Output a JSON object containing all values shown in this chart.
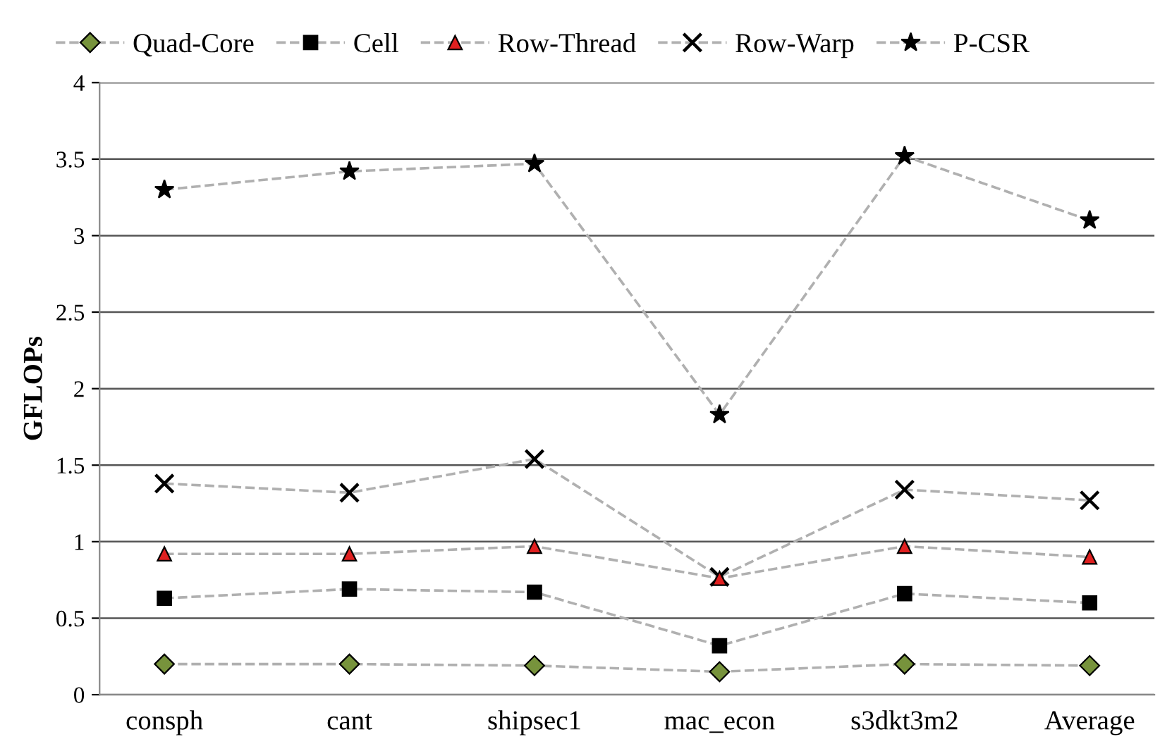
{
  "chart_data": {
    "type": "line",
    "ylabel": "GFLOPs",
    "categories": [
      "consph",
      "cant",
      "shipsec1",
      "mac_econ",
      "s3dkt3m2",
      "Average"
    ],
    "ylim": [
      0,
      4
    ],
    "yticks": [
      0,
      0.5,
      1,
      1.5,
      2,
      2.5,
      3,
      3.5,
      4
    ],
    "grid": "y",
    "legend": "top",
    "line_style": "dashed",
    "series": [
      {
        "name": "Quad-Core",
        "color": "#77933c",
        "marker": "diamond",
        "values": [
          0.2,
          0.2,
          0.19,
          0.15,
          0.2,
          0.19
        ]
      },
      {
        "name": "Cell",
        "color": "#000000",
        "marker": "square",
        "values": [
          0.63,
          0.69,
          0.67,
          0.32,
          0.66,
          0.6
        ]
      },
      {
        "name": "Row-Thread",
        "color": "#e02020",
        "marker": "triangle",
        "values": [
          0.92,
          0.92,
          0.97,
          0.76,
          0.97,
          0.9
        ]
      },
      {
        "name": "Row-Warp",
        "color": "#000000",
        "marker": "cross",
        "values": [
          1.38,
          1.32,
          1.54,
          0.77,
          1.34,
          1.27
        ]
      },
      {
        "name": "P-CSR",
        "color": "#000000",
        "marker": "star",
        "values": [
          3.3,
          3.42,
          3.47,
          1.83,
          3.52,
          3.1
        ]
      }
    ]
  }
}
